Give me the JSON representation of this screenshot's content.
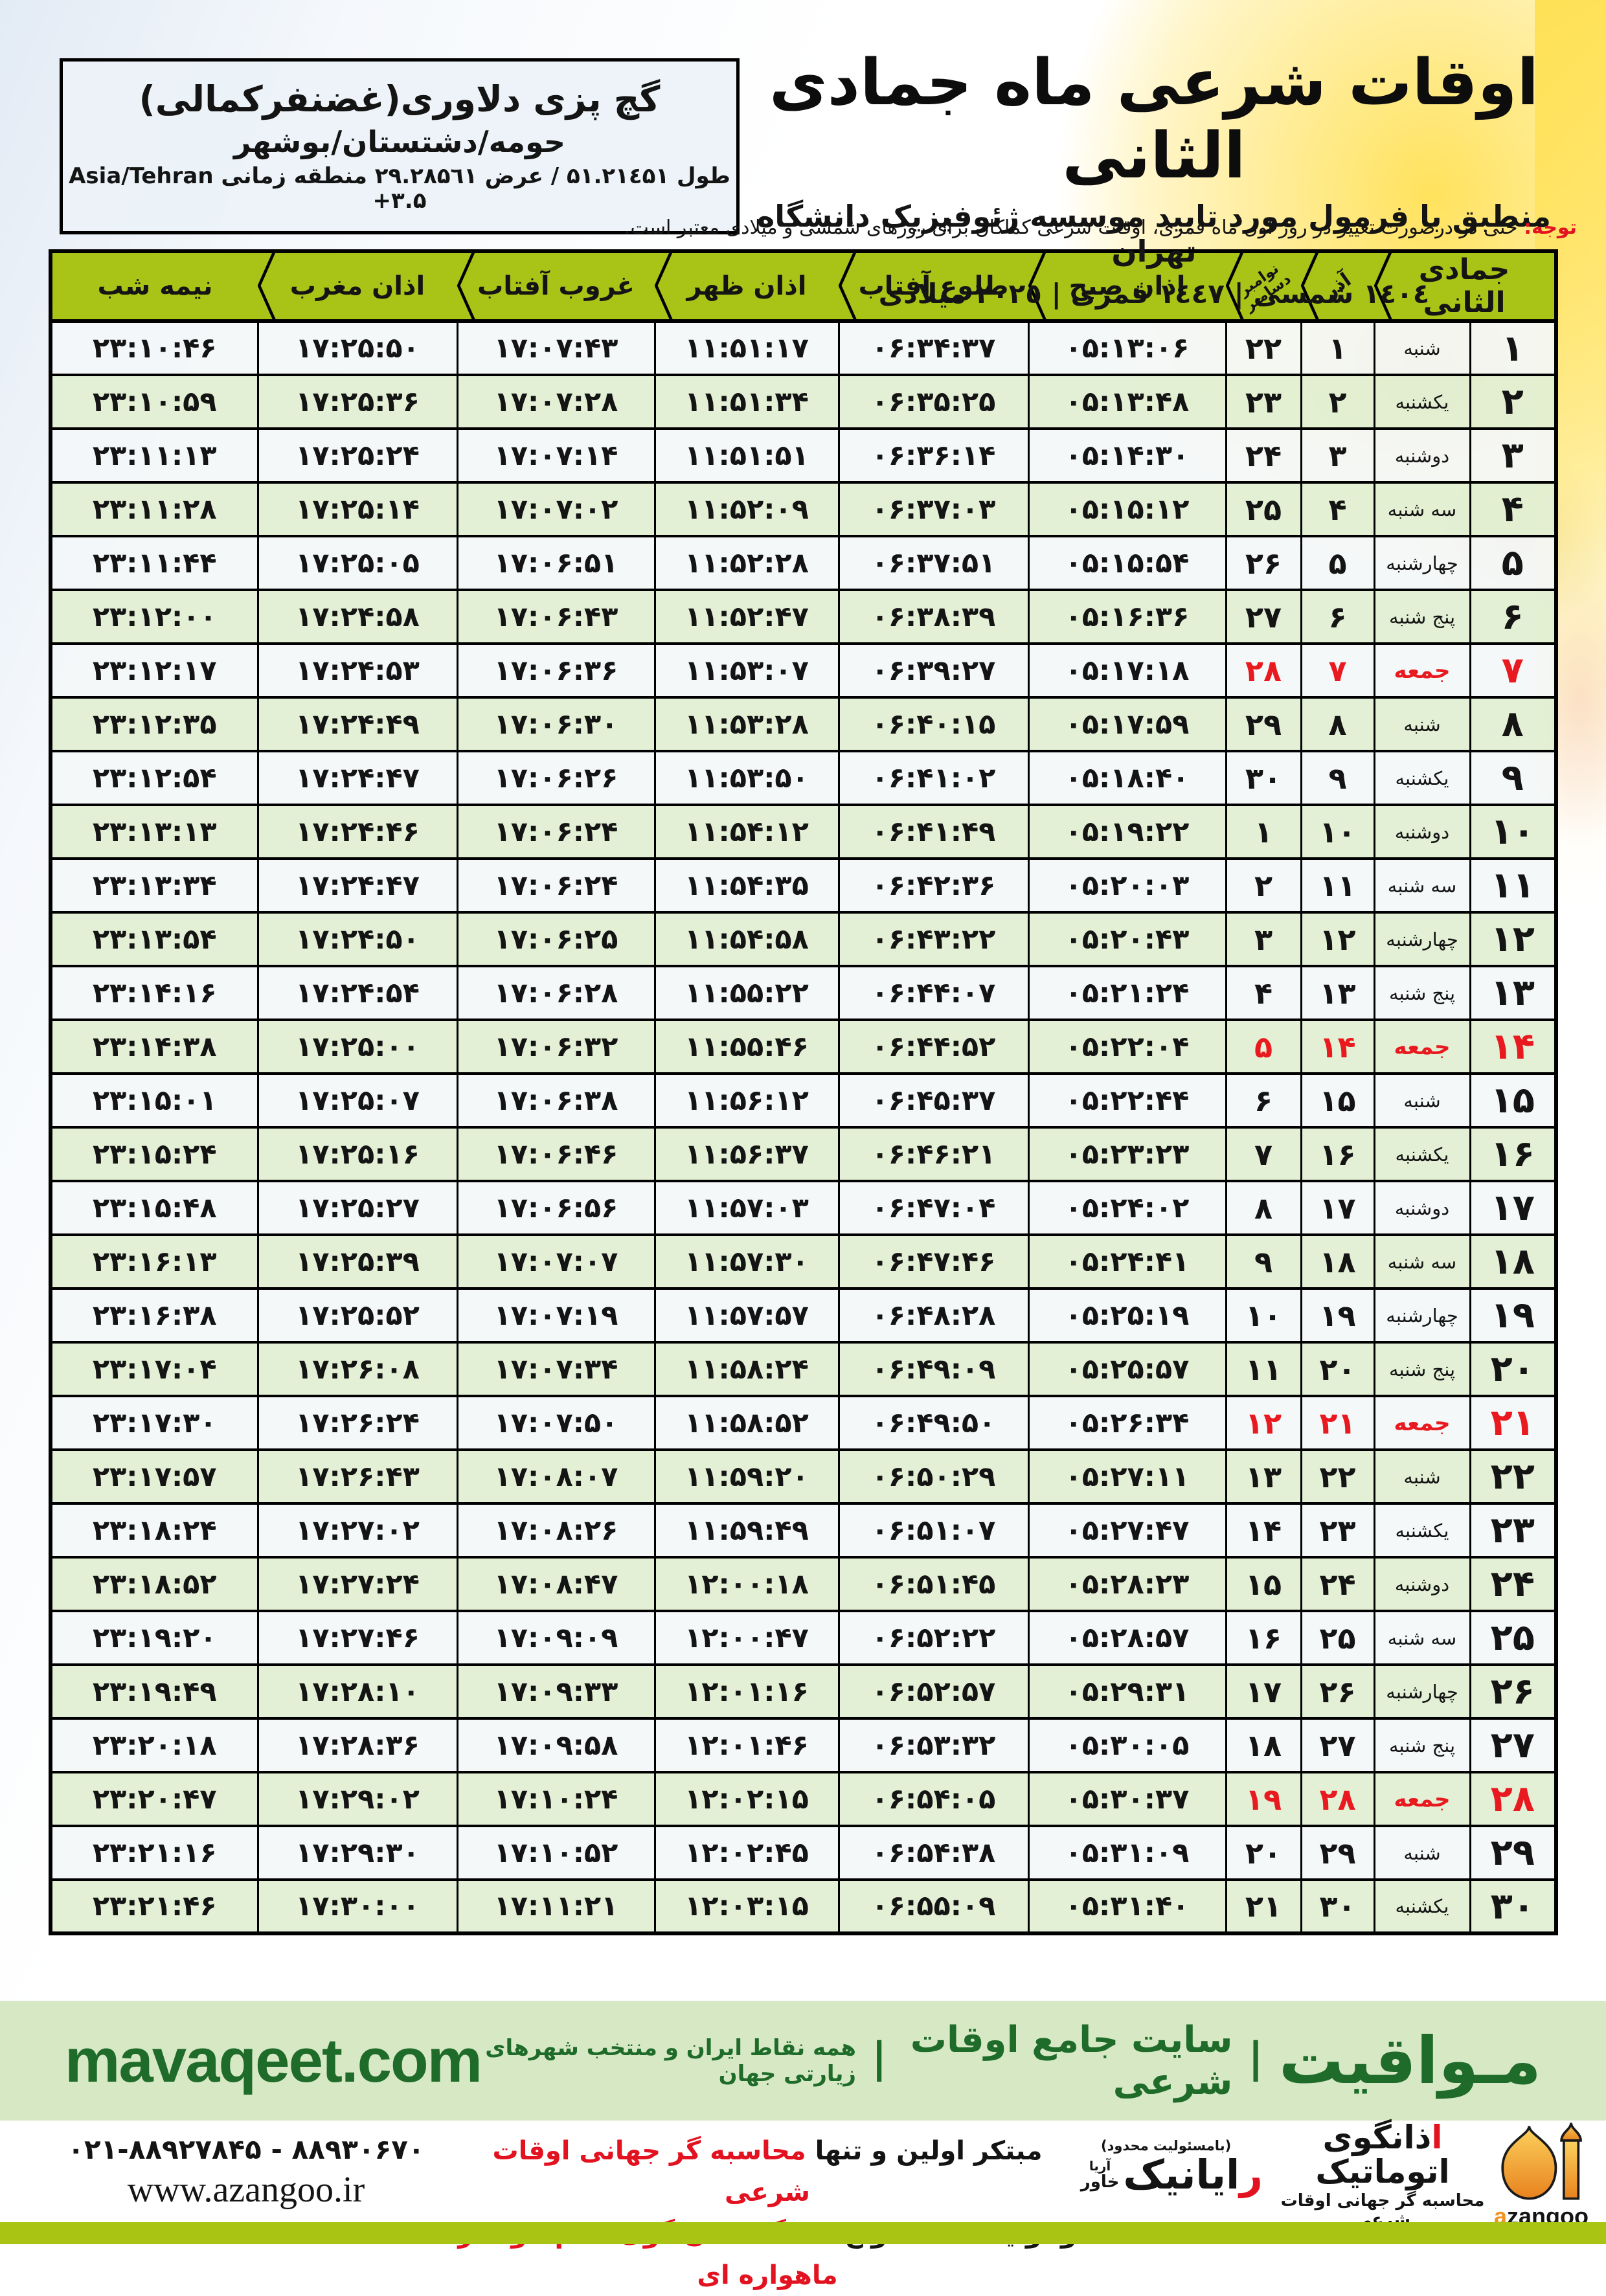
{
  "header": {
    "title": "اوقات شرعی ماه جمادی الثانی",
    "subtitle": "منطبق با فرمول مورد تایید موسسه ژئوفیزیک دانشگاه تهران",
    "years": "١٤٠٤ شمسی | ١٤٤٧ قمری | ٢٠٢٥ میلادی"
  },
  "location": {
    "name": "گچ پزی دلاوری(غضنفرکمالی)",
    "region": "حومه/دشتستان/بوشهر",
    "coords": "طول ۵۱.۲۱٤۵۱ / عرض ۲۹.۲۸۵٦۱ منطقه زمانی",
    "timezone": "Asia/Tehran +۳.۵"
  },
  "notice": {
    "label": "توجه:",
    "text": "حتی در درصورت تغییر در روز اول ماه قمری، اوقات شرعی کماکان برای روزهای شمسی و میلادی معتبر است."
  },
  "table": {
    "headers": {
      "month": "جمادی الثانی",
      "azar": "آذر",
      "nov": "نوامبر",
      "dec": "دسامبر",
      "fajr": "اذان صبح",
      "sunrise": "طلوع آفتاب",
      "dhuhr": "اذان ظهر",
      "sunset": "غروب آفتاب",
      "maghrib": "اذان مغرب",
      "midnight": "نیمه شب"
    },
    "rows": [
      {
        "day": 1,
        "weekday": "شنبه",
        "azar": 1,
        "greg": 22,
        "friday": false,
        "fajr": "05:13:06",
        "sunrise": "06:34:37",
        "dhuhr": "11:51:17",
        "sunset": "17:07:43",
        "maghrib": "17:25:50",
        "midnight": "23:10:46"
      },
      {
        "day": 2,
        "weekday": "یکشنبه",
        "azar": 2,
        "greg": 23,
        "friday": false,
        "fajr": "05:13:48",
        "sunrise": "06:35:25",
        "dhuhr": "11:51:34",
        "sunset": "17:07:28",
        "maghrib": "17:25:36",
        "midnight": "23:10:59"
      },
      {
        "day": 3,
        "weekday": "دوشنبه",
        "azar": 3,
        "greg": 24,
        "friday": false,
        "fajr": "05:14:30",
        "sunrise": "06:36:14",
        "dhuhr": "11:51:51",
        "sunset": "17:07:14",
        "maghrib": "17:25:24",
        "midnight": "23:11:13"
      },
      {
        "day": 4,
        "weekday": "سه شنبه",
        "azar": 4,
        "greg": 25,
        "friday": false,
        "fajr": "05:15:12",
        "sunrise": "06:37:03",
        "dhuhr": "11:52:09",
        "sunset": "17:07:02",
        "maghrib": "17:25:14",
        "midnight": "23:11:28"
      },
      {
        "day": 5,
        "weekday": "چهارشنبه",
        "azar": 5,
        "greg": 26,
        "friday": false,
        "fajr": "05:15:54",
        "sunrise": "06:37:51",
        "dhuhr": "11:52:28",
        "sunset": "17:06:51",
        "maghrib": "17:25:05",
        "midnight": "23:11:44"
      },
      {
        "day": 6,
        "weekday": "پنج شنبه",
        "azar": 6,
        "greg": 27,
        "friday": false,
        "fajr": "05:16:36",
        "sunrise": "06:38:39",
        "dhuhr": "11:52:47",
        "sunset": "17:06:43",
        "maghrib": "17:24:58",
        "midnight": "23:12:00"
      },
      {
        "day": 7,
        "weekday": "جمعه",
        "azar": 7,
        "greg": 28,
        "friday": true,
        "fajr": "05:17:18",
        "sunrise": "06:39:27",
        "dhuhr": "11:53:07",
        "sunset": "17:06:36",
        "maghrib": "17:24:53",
        "midnight": "23:12:17"
      },
      {
        "day": 8,
        "weekday": "شنبه",
        "azar": 8,
        "greg": 29,
        "friday": false,
        "fajr": "05:17:59",
        "sunrise": "06:40:15",
        "dhuhr": "11:53:28",
        "sunset": "17:06:30",
        "maghrib": "17:24:49",
        "midnight": "23:12:35"
      },
      {
        "day": 9,
        "weekday": "یکشنبه",
        "azar": 9,
        "greg": 30,
        "friday": false,
        "fajr": "05:18:40",
        "sunrise": "06:41:02",
        "dhuhr": "11:53:50",
        "sunset": "17:06:26",
        "maghrib": "17:24:47",
        "midnight": "23:12:54"
      },
      {
        "day": 10,
        "weekday": "دوشنبه",
        "azar": 10,
        "greg": 1,
        "friday": false,
        "fajr": "05:19:22",
        "sunrise": "06:41:49",
        "dhuhr": "11:54:12",
        "sunset": "17:06:24",
        "maghrib": "17:24:46",
        "midnight": "23:13:13"
      },
      {
        "day": 11,
        "weekday": "سه شنبه",
        "azar": 11,
        "greg": 2,
        "friday": false,
        "fajr": "05:20:03",
        "sunrise": "06:42:36",
        "dhuhr": "11:54:35",
        "sunset": "17:06:24",
        "maghrib": "17:24:47",
        "midnight": "23:13:34"
      },
      {
        "day": 12,
        "weekday": "چهارشنبه",
        "azar": 12,
        "greg": 3,
        "friday": false,
        "fajr": "05:20:43",
        "sunrise": "06:43:22",
        "dhuhr": "11:54:58",
        "sunset": "17:06:25",
        "maghrib": "17:24:50",
        "midnight": "23:13:54"
      },
      {
        "day": 13,
        "weekday": "پنج شنبه",
        "azar": 13,
        "greg": 4,
        "friday": false,
        "fajr": "05:21:24",
        "sunrise": "06:44:07",
        "dhuhr": "11:55:22",
        "sunset": "17:06:28",
        "maghrib": "17:24:54",
        "midnight": "23:14:16"
      },
      {
        "day": 14,
        "weekday": "جمعه",
        "azar": 14,
        "greg": 5,
        "friday": true,
        "fajr": "05:22:04",
        "sunrise": "06:44:52",
        "dhuhr": "11:55:46",
        "sunset": "17:06:32",
        "maghrib": "17:25:00",
        "midnight": "23:14:38"
      },
      {
        "day": 15,
        "weekday": "شنبه",
        "azar": 15,
        "greg": 6,
        "friday": false,
        "fajr": "05:22:44",
        "sunrise": "06:45:37",
        "dhuhr": "11:56:12",
        "sunset": "17:06:38",
        "maghrib": "17:25:07",
        "midnight": "23:15:01"
      },
      {
        "day": 16,
        "weekday": "یکشنبه",
        "azar": 16,
        "greg": 7,
        "friday": false,
        "fajr": "05:23:23",
        "sunrise": "06:46:21",
        "dhuhr": "11:56:37",
        "sunset": "17:06:46",
        "maghrib": "17:25:16",
        "midnight": "23:15:24"
      },
      {
        "day": 17,
        "weekday": "دوشنبه",
        "azar": 17,
        "greg": 8,
        "friday": false,
        "fajr": "05:24:02",
        "sunrise": "06:47:04",
        "dhuhr": "11:57:03",
        "sunset": "17:06:56",
        "maghrib": "17:25:27",
        "midnight": "23:15:48"
      },
      {
        "day": 18,
        "weekday": "سه شنبه",
        "azar": 18,
        "greg": 9,
        "friday": false,
        "fajr": "05:24:41",
        "sunrise": "06:47:46",
        "dhuhr": "11:57:30",
        "sunset": "17:07:07",
        "maghrib": "17:25:39",
        "midnight": "23:16:13"
      },
      {
        "day": 19,
        "weekday": "چهارشنبه",
        "azar": 19,
        "greg": 10,
        "friday": false,
        "fajr": "05:25:19",
        "sunrise": "06:48:28",
        "dhuhr": "11:57:57",
        "sunset": "17:07:19",
        "maghrib": "17:25:52",
        "midnight": "23:16:38"
      },
      {
        "day": 20,
        "weekday": "پنج شنبه",
        "azar": 20,
        "greg": 11,
        "friday": false,
        "fajr": "05:25:57",
        "sunrise": "06:49:09",
        "dhuhr": "11:58:24",
        "sunset": "17:07:34",
        "maghrib": "17:26:08",
        "midnight": "23:17:04"
      },
      {
        "day": 21,
        "weekday": "جمعه",
        "azar": 21,
        "greg": 12,
        "friday": true,
        "fajr": "05:26:34",
        "sunrise": "06:49:50",
        "dhuhr": "11:58:52",
        "sunset": "17:07:50",
        "maghrib": "17:26:24",
        "midnight": "23:17:30"
      },
      {
        "day": 22,
        "weekday": "شنبه",
        "azar": 22,
        "greg": 13,
        "friday": false,
        "fajr": "05:27:11",
        "sunrise": "06:50:29",
        "dhuhr": "11:59:20",
        "sunset": "17:08:07",
        "maghrib": "17:26:43",
        "midnight": "23:17:57"
      },
      {
        "day": 23,
        "weekday": "یکشنبه",
        "azar": 23,
        "greg": 14,
        "friday": false,
        "fajr": "05:27:47",
        "sunrise": "06:51:07",
        "dhuhr": "11:59:49",
        "sunset": "17:08:26",
        "maghrib": "17:27:02",
        "midnight": "23:18:24"
      },
      {
        "day": 24,
        "weekday": "دوشنبه",
        "azar": 24,
        "greg": 15,
        "friday": false,
        "fajr": "05:28:23",
        "sunrise": "06:51:45",
        "dhuhr": "12:00:18",
        "sunset": "17:08:47",
        "maghrib": "17:27:24",
        "midnight": "23:18:52"
      },
      {
        "day": 25,
        "weekday": "سه شنبه",
        "azar": 25,
        "greg": 16,
        "friday": false,
        "fajr": "05:28:57",
        "sunrise": "06:52:22",
        "dhuhr": "12:00:47",
        "sunset": "17:09:09",
        "maghrib": "17:27:46",
        "midnight": "23:19:20"
      },
      {
        "day": 26,
        "weekday": "چهارشنبه",
        "azar": 26,
        "greg": 17,
        "friday": false,
        "fajr": "05:29:31",
        "sunrise": "06:52:57",
        "dhuhr": "12:01:16",
        "sunset": "17:09:33",
        "maghrib": "17:28:10",
        "midnight": "23:19:49"
      },
      {
        "day": 27,
        "weekday": "پنج شنبه",
        "azar": 27,
        "greg": 18,
        "friday": false,
        "fajr": "05:30:05",
        "sunrise": "06:53:32",
        "dhuhr": "12:01:46",
        "sunset": "17:09:58",
        "maghrib": "17:28:36",
        "midnight": "23:20:18"
      },
      {
        "day": 28,
        "weekday": "جمعه",
        "azar": 28,
        "greg": 19,
        "friday": true,
        "fajr": "05:30:37",
        "sunrise": "06:54:05",
        "dhuhr": "12:02:15",
        "sunset": "17:10:24",
        "maghrib": "17:29:02",
        "midnight": "23:20:47"
      },
      {
        "day": 29,
        "weekday": "شنبه",
        "azar": 29,
        "greg": 20,
        "friday": false,
        "fajr": "05:31:09",
        "sunrise": "06:54:38",
        "dhuhr": "12:02:45",
        "sunset": "17:10:52",
        "maghrib": "17:29:30",
        "midnight": "23:21:16"
      },
      {
        "day": 30,
        "weekday": "یکشنبه",
        "azar": 30,
        "greg": 21,
        "friday": false,
        "fajr": "05:31:40",
        "sunrise": "06:55:09",
        "dhuhr": "12:03:15",
        "sunset": "17:11:21",
        "maghrib": "17:30:00",
        "midnight": "23:21:46"
      }
    ]
  },
  "footer": {
    "brand": "مـواقیت",
    "separator": "|",
    "site_title": "سایت جامع اوقات شرعی",
    "site_desc": "همه نقاط ایران و منتخب شهرهای زیارتی جهان",
    "site_en": "mavaqeet.com",
    "phones": "021-88927845 - 88930670",
    "website": "www.azangoo.ir",
    "ad1_black": "مبتکر اولین و تنها",
    "ad1_red": "محاسبه گر جهانی اوقات شرعی",
    "ad2_black": "و تولید کننده انواع",
    "ad2_red": "دستگاه اذان گوی تمام خودکار ماهواره ای",
    "rayanik_note": "(بامسئولیت محدود)",
    "rayanik_first": "ر",
    "rayanik_rest": "ایانیک",
    "rayanik_sub_top": "آریا",
    "rayanik_sub_bottom": "خاور",
    "azangoo_first": "ا",
    "azangoo_rest": "ذانگوی اتوماتیک",
    "azangoo_tag": "محاسبه گر جهانی اوقات شرعی",
    "azangoo_en_a": "a",
    "azangoo_en_rest": "zangoo"
  }
}
